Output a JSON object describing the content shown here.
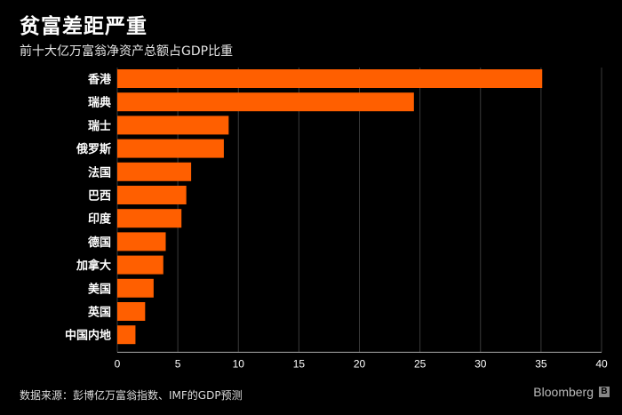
{
  "header": {
    "title": "贫富差距严重",
    "subtitle": "前十大亿万富翁净资产总额占GDP比重"
  },
  "footer": {
    "source": "数据来源：彭博亿万富翁指数、IMF的GDP预测",
    "brand": "Bloomberg",
    "brand_mark": "B"
  },
  "colors": {
    "background": "#000000",
    "bar": "#ff5f00",
    "gridline": "#3a3a3a",
    "text": "#ffffff"
  },
  "chart_data": {
    "type": "bar",
    "orientation": "horizontal",
    "title": "贫富差距严重",
    "subtitle": "前十大亿万富翁净资产总额占GDP比重",
    "categories": [
      "香港",
      "瑞典",
      "瑞士",
      "俄罗斯",
      "法国",
      "巴西",
      "印度",
      "德国",
      "加拿大",
      "美国",
      "英国",
      "中国内地"
    ],
    "values": [
      35.1,
      24.5,
      9.2,
      8.8,
      6.1,
      5.7,
      5.3,
      4.0,
      3.8,
      3.0,
      2.3,
      1.5
    ],
    "xlim": [
      0,
      40
    ],
    "xticks": [
      0,
      5,
      10,
      15,
      20,
      25,
      30,
      35,
      40
    ],
    "grid": true,
    "legend": "none"
  }
}
